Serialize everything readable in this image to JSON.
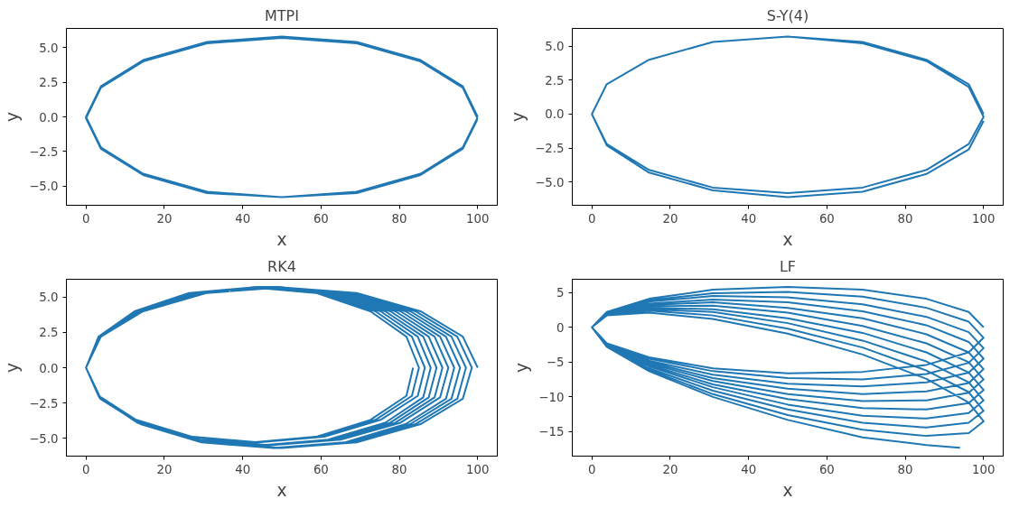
{
  "chart_data": [
    {
      "type": "line",
      "title": "MTPI",
      "xlabel": "x",
      "ylabel": "y",
      "xlim": [
        -5,
        105
      ],
      "ylim": [
        -6.38,
        6.38
      ],
      "xticks": [
        0,
        20,
        40,
        60,
        80,
        100
      ],
      "yticks": [
        {
          "value": -5,
          "label": "−5.0"
        },
        {
          "value": -2.5,
          "label": "−2.5"
        },
        {
          "value": 0,
          "label": "0.0"
        },
        {
          "value": 2.5,
          "label": "2.5"
        },
        {
          "value": 5,
          "label": "5.0"
        }
      ],
      "grid": false,
      "series": [
        {
          "color": "#1f77b4",
          "x": [
            100,
            96.2,
            85.4,
            69.1,
            50,
            30.9,
            14.6,
            3.8,
            0,
            3.8,
            14.6,
            30.9,
            50,
            69.1,
            85.4,
            96.2,
            99.9,
            96.2,
            85.4,
            69.1,
            50,
            30.9,
            14.6,
            3.8,
            0,
            3.8,
            14.6,
            30.9,
            50,
            69.1,
            85.4,
            96.2,
            99.9
          ],
          "values": [
            0,
            2.2,
            4.1,
            5.4,
            5.8,
            5.4,
            4.1,
            2.2,
            0,
            -2.2,
            -4.1,
            -5.4,
            -5.8,
            -5.4,
            -4.1,
            -2.2,
            -0.1,
            2.1,
            4.0,
            5.3,
            5.7,
            5.3,
            4.0,
            2.1,
            -0.1,
            -2.3,
            -4.2,
            -5.5,
            -5.8,
            -5.5,
            -4.2,
            -2.3,
            -0.2
          ]
        }
      ]
    },
    {
      "type": "line",
      "title": "S-Y(4)",
      "xlabel": "x",
      "ylabel": "y",
      "xlim": [
        -5,
        105
      ],
      "ylim": [
        -6.7,
        6.3
      ],
      "xticks": [
        0,
        20,
        40,
        60,
        80,
        100
      ],
      "yticks": [
        {
          "value": -5,
          "label": "−5.0"
        },
        {
          "value": -2.5,
          "label": "−2.5"
        },
        {
          "value": 0,
          "label": "0.0"
        },
        {
          "value": 2.5,
          "label": "2.5"
        },
        {
          "value": 5,
          "label": "5.0"
        }
      ],
      "grid": false,
      "series": [
        {
          "color": "#1f77b4",
          "x": [
            100,
            96.2,
            85.4,
            69.1,
            50,
            30.9,
            14.6,
            3.8,
            0,
            3.8,
            14.6,
            30.9,
            50,
            69.1,
            85.4,
            96.2,
            100,
            96.2,
            85.4,
            69.1,
            50,
            30.9,
            14.6,
            3.8,
            0,
            3.8,
            14.6,
            30.9,
            50,
            69.1,
            85.4,
            96.2,
            100
          ],
          "values": [
            0,
            2.2,
            4.0,
            5.3,
            5.7,
            5.3,
            4.0,
            2.2,
            0,
            -2.2,
            -4.1,
            -5.4,
            -5.8,
            -5.4,
            -4.1,
            -2.2,
            -0.2,
            2.0,
            3.9,
            5.2,
            5.7,
            5.3,
            4.0,
            2.2,
            0,
            -2.3,
            -4.3,
            -5.6,
            -6.1,
            -5.7,
            -4.4,
            -2.6,
            -0.5
          ]
        }
      ]
    },
    {
      "type": "line",
      "title": "RK4",
      "xlabel": "x",
      "ylabel": "y",
      "xlim": [
        -5,
        105
      ],
      "ylim": [
        -6.27,
        6.27
      ],
      "xticks": [
        0,
        20,
        40,
        60,
        80,
        100
      ],
      "yticks": [
        {
          "value": -5,
          "label": "−5.0"
        },
        {
          "value": -2.5,
          "label": "−2.5"
        },
        {
          "value": 0,
          "label": "0.0"
        },
        {
          "value": 2.5,
          "label": "2.5"
        },
        {
          "value": 5,
          "label": "5.0"
        }
      ],
      "grid": false,
      "series": [
        {
          "color": "#1f77b4",
          "x": [
            100,
            96.2,
            85.4,
            69.1,
            50,
            30.9,
            14.6,
            3.8,
            0,
            3.8,
            14.6,
            30.9,
            50,
            69.1,
            85.4,
            96.2,
            98.5,
            94.8,
            84.1,
            68.1,
            49.3,
            30.4,
            14.4,
            3.7,
            0,
            3.7,
            14.4,
            30.4,
            49.3,
            68.1,
            84.1,
            94.8,
            97,
            93.3,
            82.8,
            67.0,
            48.5,
            30.0,
            14.2,
            3.7,
            0,
            3.7,
            14.2,
            30.0,
            48.5,
            67.0,
            82.8,
            93.3,
            95.5,
            91.9,
            81.6,
            66.0,
            47.8,
            29.5,
            13.9,
            3.6,
            0,
            3.6,
            13.9,
            29.5,
            47.8,
            66.0,
            81.6,
            91.9,
            94,
            90.4,
            80.3,
            65.0,
            47,
            29.0,
            13.7,
            3.6,
            0,
            3.6,
            13.7,
            29.0,
            47,
            65.0,
            80.3,
            90.4,
            92.5,
            89.0,
            79.0,
            63.9,
            46.3,
            28.6,
            13.5,
            3.5,
            0,
            3.5,
            13.5,
            28.6,
            46.3,
            63.9,
            79.0,
            89.0,
            91,
            87.5,
            77.7,
            62.9,
            45.5,
            28.1,
            13.3,
            3.5,
            0,
            3.5,
            13.3,
            28.1,
            45.5,
            62.9,
            77.7,
            87.5,
            89.5,
            86.1,
            76.4,
            61.8,
            44.8,
            27.7,
            13.1,
            3.4,
            0,
            3.4,
            13.1,
            27.7,
            44.8,
            61.8,
            76.4,
            86.1,
            88,
            84.7,
            75.2,
            60.8,
            44,
            27.2,
            12.8,
            3.3,
            0,
            3.3,
            12.8,
            27.2,
            44,
            60.8,
            75.2,
            84.7,
            86.5,
            83.2,
            73.9,
            59.8,
            43.3,
            26.7,
            12.6,
            3.3,
            0,
            3.3,
            12.6,
            26.7,
            43.3,
            59.8,
            73.9,
            83.2,
            85,
            81.8,
            72.6,
            58.7,
            42.5,
            26.3,
            12.4,
            3.2,
            0,
            3.2,
            12.4,
            26.3,
            42.5,
            58.7,
            72.6,
            81.8,
            83.5
          ],
          "values": [
            0,
            2.2,
            4.0,
            5.3,
            5.7,
            5.3,
            4.0,
            2.2,
            0,
            -2.2,
            -4.0,
            -5.3,
            -5.7,
            -5.3,
            -4.0,
            -2.2,
            0,
            2.2,
            4.0,
            5.3,
            5.7,
            5.3,
            4.0,
            2.2,
            0,
            -2.2,
            -4.0,
            -5.3,
            -5.7,
            -5.3,
            -4.0,
            -2.2,
            0,
            2.2,
            4.0,
            5.3,
            5.7,
            5.3,
            4.0,
            2.2,
            0,
            -2.2,
            -4.0,
            -5.3,
            -5.7,
            -5.3,
            -4.0,
            -2.2,
            0,
            2.2,
            4.0,
            5.3,
            5.7,
            5.3,
            4.0,
            2.2,
            0,
            -2.2,
            -4.0,
            -5.3,
            -5.7,
            -5.3,
            -4.0,
            -2.2,
            0,
            2.2,
            4.0,
            5.3,
            5.7,
            5.3,
            4.0,
            2.2,
            0,
            -2.1,
            -3.9,
            -5.1,
            -5.5,
            -5.1,
            -3.9,
            -2.1,
            0,
            2.2,
            4.0,
            5.3,
            5.7,
            5.3,
            4.0,
            2.2,
            0,
            -2.1,
            -3.9,
            -5.1,
            -5.5,
            -5.1,
            -3.9,
            -2.1,
            0,
            2.2,
            4.0,
            5.3,
            5.7,
            5.3,
            4.0,
            2.2,
            0,
            -2.1,
            -3.9,
            -5.1,
            -5.5,
            -5.1,
            -3.9,
            -2.1,
            0,
            2.2,
            4.0,
            5.3,
            5.7,
            5.3,
            4.0,
            2.2,
            0,
            -2.1,
            -3.9,
            -5.1,
            -5.5,
            -5.1,
            -3.9,
            -2.1,
            0,
            2.2,
            4.0,
            5.3,
            5.7,
            5.3,
            4.0,
            2.2,
            0,
            -2.0,
            -3.7,
            -4.9,
            -5.3,
            -4.9,
            -3.7,
            -2.0,
            0,
            2.2,
            4.0,
            5.3,
            5.7,
            5.3,
            4.0,
            2.2,
            0,
            -2.0,
            -3.7,
            -4.9,
            -5.3,
            -4.9,
            -3.7,
            -2.0,
            0,
            2.2,
            4.0,
            5.3,
            5.7,
            5.3,
            4.0,
            2.2,
            0,
            -2.0,
            -3.7,
            -4.9,
            -5.3,
            -4.9,
            -3.7,
            -2.0,
            0
          ]
        }
      ]
    },
    {
      "type": "line",
      "title": "LF",
      "xlabel": "x",
      "ylabel": "y",
      "xlim": [
        -5,
        105
      ],
      "ylim": [
        -18.5,
        6.9
      ],
      "xticks": [
        0,
        20,
        40,
        60,
        80,
        100
      ],
      "yticks": [
        {
          "value": -15,
          "label": "−15"
        },
        {
          "value": -10,
          "label": "−10"
        },
        {
          "value": -5,
          "label": "−5"
        },
        0,
        5
      ],
      "grid": false,
      "series": [
        {
          "color": "#1f77b4",
          "x": [
            100,
            96.2,
            85.4,
            69.1,
            50,
            30.9,
            14.6,
            3.8,
            0,
            3.8,
            14.6,
            30.9,
            50,
            69.1,
            85.4,
            96.2,
            100,
            96.2,
            85.4,
            69.1,
            50,
            30.9,
            14.6,
            3.8,
            0,
            3.8,
            14.6,
            30.9,
            50,
            69.1,
            85.4,
            96.2,
            100,
            96.2,
            85.4,
            69.1,
            50,
            30.9,
            14.6,
            3.8,
            0,
            3.8,
            14.6,
            30.9,
            50,
            69.1,
            85.4,
            96.2,
            100,
            96.2,
            85.4,
            69.1,
            50,
            30.9,
            14.6,
            3.8,
            0,
            3.8,
            14.6,
            30.9,
            50,
            69.1,
            85.4,
            96.2,
            100,
            96.2,
            85.4,
            69.1,
            50,
            30.9,
            14.6,
            3.8,
            0,
            3.8,
            14.6,
            30.9,
            50,
            69.1,
            85.4,
            96.2,
            100,
            96.2,
            85.4,
            69.1,
            50,
            30.9,
            14.6,
            3.8,
            0,
            3.8,
            14.6,
            30.9,
            50,
            69.1,
            85.4,
            96.2,
            100,
            96.2,
            85.4,
            69.1,
            50,
            30.9,
            14.6,
            3.8,
            0,
            3.8,
            14.6,
            30.9,
            50,
            69.1,
            85.4,
            96.2,
            100,
            96.2,
            85.4,
            69.1,
            50,
            30.9,
            14.6,
            3.8,
            0,
            3.8,
            14.6,
            30.9,
            50,
            69.1,
            85.4,
            96.2,
            100,
            96.2,
            85.4,
            69.1,
            50,
            30.9,
            14.6,
            3.8,
            0,
            3.8,
            14.6,
            30.9,
            50,
            69.1,
            85.4,
            96.2,
            100,
            96.2,
            85.4,
            69.1,
            50,
            30.9,
            14.6,
            3.8,
            0,
            3.8,
            14.6,
            30.9,
            50,
            69.1,
            85.4,
            94
          ],
          "values": [
            0,
            2.2,
            4.1,
            5.4,
            5.8,
            5.4,
            4.1,
            2.2,
            0,
            -2.3,
            -4.3,
            -5.9,
            -6.6,
            -6.4,
            -5.4,
            -3.6,
            -1.5,
            0.8,
            2.8,
            4.4,
            5.1,
            4.9,
            3.9,
            2.1,
            0,
            -2.3,
            -4.5,
            -6.3,
            -7.3,
            -7.5,
            -6.7,
            -5.1,
            -3,
            -0.7,
            1.5,
            3.3,
            4.3,
            4.5,
            3.7,
            2.1,
            0,
            -2.4,
            -4.8,
            -6.8,
            -8.1,
            -8.5,
            -7.9,
            -6.5,
            -4.5,
            -2.1,
            0.3,
            2.3,
            3.6,
            4.0,
            3.4,
            2.0,
            0,
            -2.4,
            -5.0,
            -7.3,
            -8.8,
            -9.6,
            -9.2,
            -8.0,
            -6,
            -3.6,
            -1.0,
            1.3,
            2.8,
            3.6,
            3.2,
            2.0,
            0,
            -2.5,
            -5.2,
            -7.7,
            -9.6,
            -10.6,
            -10.5,
            -9.4,
            -7.5,
            -5.0,
            -2.3,
            0.2,
            2.1,
            3.1,
            3.0,
            1.9,
            0,
            -2.5,
            -5.4,
            -8.2,
            -10.3,
            -11.6,
            -11.8,
            -10.9,
            -9,
            -6.5,
            -3.6,
            -0.8,
            1.3,
            2.6,
            2.8,
            1.9,
            0,
            -2.6,
            -5.6,
            -8.6,
            -11.1,
            -12.7,
            -13.1,
            -12.3,
            -10.5,
            -7.9,
            -4.9,
            -1.9,
            0.6,
            2.2,
            2.6,
            1.8,
            0,
            -2.7,
            -5.9,
            -9.1,
            -11.8,
            -13.7,
            -14.4,
            -13.7,
            -12,
            -9.3,
            -6.2,
            -2.9,
            -0.2,
            1.7,
            2.4,
            1.7,
            0,
            -2.7,
            -6.1,
            -9.6,
            -12.6,
            -14.7,
            -15.6,
            -15.2,
            -13.5,
            -10.8,
            -7.4,
            -3.9,
            -0.9,
            1.2,
            2.1,
            1.7,
            0,
            -2.8,
            -6.3,
            -10.0,
            -13.3,
            -15.8,
            -16.9,
            -17.3
          ]
        }
      ]
    }
  ]
}
